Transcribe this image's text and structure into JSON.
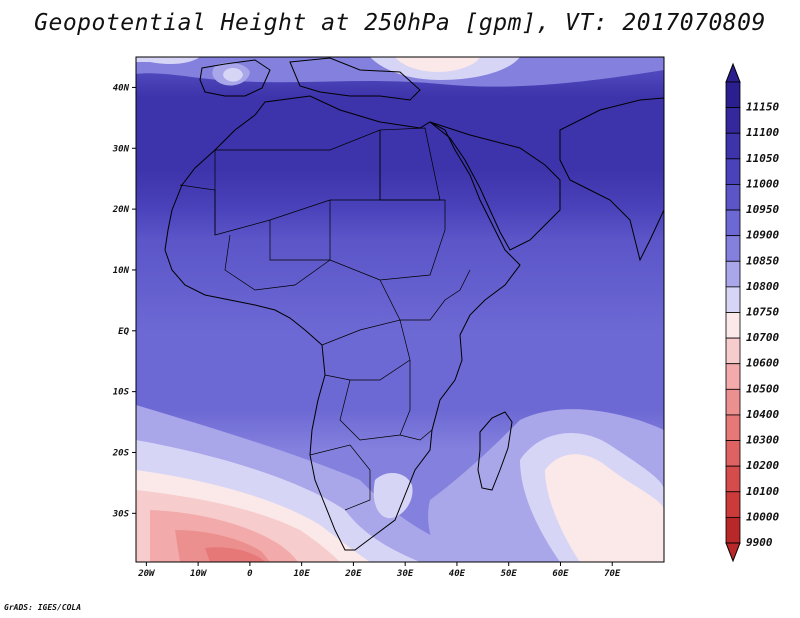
{
  "title": "Geopotential Height at 250hPa [gpm], VT: 2017070809",
  "credit": "GrADS: IGES/COLA",
  "map": {
    "lon_range": [
      -22,
      80
    ],
    "lat_range": [
      -38,
      45
    ],
    "lon_ticks": [
      {
        "value": -20,
        "label": "20W"
      },
      {
        "value": -10,
        "label": "10W"
      },
      {
        "value": 0,
        "label": "0"
      },
      {
        "value": 10,
        "label": "10E"
      },
      {
        "value": 20,
        "label": "20E"
      },
      {
        "value": 30,
        "label": "30E"
      },
      {
        "value": 40,
        "label": "40E"
      },
      {
        "value": 50,
        "label": "50E"
      },
      {
        "value": 60,
        "label": "60E"
      },
      {
        "value": 70,
        "label": "70E"
      }
    ],
    "lat_ticks": [
      {
        "value": 40,
        "label": "40N"
      },
      {
        "value": 30,
        "label": "30N"
      },
      {
        "value": 20,
        "label": "20N"
      },
      {
        "value": 10,
        "label": "10N"
      },
      {
        "value": 0,
        "label": "EQ"
      },
      {
        "value": -10,
        "label": "10S"
      },
      {
        "value": -20,
        "label": "20S"
      },
      {
        "value": -30,
        "label": "30S"
      }
    ]
  },
  "legend": {
    "levels": [
      {
        "label": "11150",
        "color": "#2b1e8e"
      },
      {
        "label": "11100",
        "color": "#34289c"
      },
      {
        "label": "11050",
        "color": "#3d33aa"
      },
      {
        "label": "11000",
        "color": "#4a42ba"
      },
      {
        "label": "10950",
        "color": "#5b55c8"
      },
      {
        "label": "10900",
        "color": "#6d69d4"
      },
      {
        "label": "10850",
        "color": "#8481de"
      },
      {
        "label": "10800",
        "color": "#a9a6e9"
      },
      {
        "label": "10750",
        "color": "#d7d5f5"
      },
      {
        "label": "10700",
        "color": "#fbe9e9"
      },
      {
        "label": "10600",
        "color": "#f7cccc"
      },
      {
        "label": "10500",
        "color": "#f2aaaa"
      },
      {
        "label": "10400",
        "color": "#ec8f8f"
      },
      {
        "label": "10300",
        "color": "#e67878"
      },
      {
        "label": "10200",
        "color": "#df6262"
      },
      {
        "label": "10100",
        "color": "#d64c4c"
      },
      {
        "label": "10000",
        "color": "#cc3a3a"
      },
      {
        "label": "9900",
        "color": "#b82828"
      }
    ]
  }
}
